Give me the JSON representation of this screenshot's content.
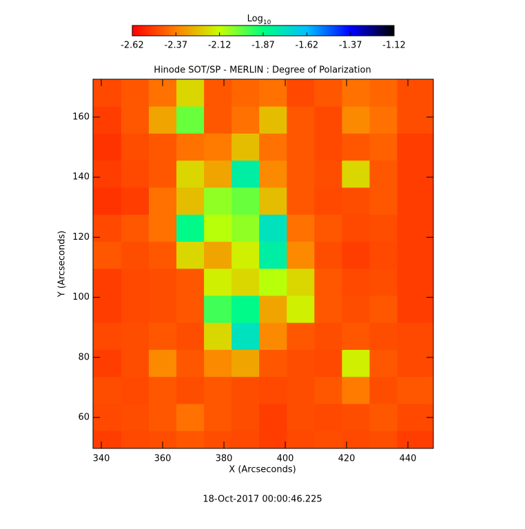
{
  "chart_data": {
    "type": "heatmap",
    "title": "Hinode SOT/SP - MERLIN : Degree of Polarization",
    "xlabel": "X (Arcseconds)",
    "ylabel": "Y (Arcseconds)",
    "colorbar_label": "Log",
    "colorbar_label_sub": "10",
    "footer": "18-Oct-2017 00:00:46.225",
    "xlim": [
      337.3,
      448.3
    ],
    "xticks": [
      340,
      360,
      380,
      400,
      420,
      440
    ],
    "ylim": [
      49.7,
      172.6
    ],
    "yticks": [
      60,
      80,
      100,
      120,
      140,
      160
    ],
    "clim": [
      -2.62,
      -1.12
    ],
    "cticks": [
      -2.62,
      -2.37,
      -2.12,
      -1.87,
      -1.62,
      -1.37,
      -1.12
    ],
    "colormap": [
      "#ff0000",
      "#ff8000",
      "#c8ff00",
      "#00ff80",
      "#00c0ff",
      "#0000ff",
      "#000000"
    ],
    "x": [
      342,
      351,
      360,
      369,
      378,
      387,
      396,
      405,
      414,
      423,
      432,
      441
    ],
    "y": [
      168,
      159,
      150,
      141,
      132,
      123,
      114,
      105,
      96,
      87,
      78,
      69,
      60,
      51
    ],
    "z": [
      [
        -2.48,
        -2.45,
        -2.4,
        -2.2,
        -2.45,
        -2.42,
        -2.4,
        -2.48,
        -2.45,
        -2.4,
        -2.42,
        -2.47
      ],
      [
        -2.5,
        -2.45,
        -2.3,
        -2.0,
        -2.45,
        -2.4,
        -2.25,
        -2.45,
        -2.48,
        -2.35,
        -2.4,
        -2.47
      ],
      [
        -2.52,
        -2.47,
        -2.45,
        -2.4,
        -2.38,
        -2.25,
        -2.4,
        -2.45,
        -2.48,
        -2.45,
        -2.43,
        -2.5
      ],
      [
        -2.5,
        -2.48,
        -2.45,
        -2.2,
        -2.3,
        -1.8,
        -2.35,
        -2.45,
        -2.47,
        -2.2,
        -2.45,
        -2.5
      ],
      [
        -2.52,
        -2.5,
        -2.4,
        -2.25,
        -2.05,
        -2.0,
        -2.25,
        -2.45,
        -2.48,
        -2.47,
        -2.45,
        -2.5
      ],
      [
        -2.48,
        -2.45,
        -2.4,
        -1.85,
        -2.1,
        -2.05,
        -1.75,
        -2.4,
        -2.45,
        -2.48,
        -2.47,
        -2.5
      ],
      [
        -2.45,
        -2.47,
        -2.45,
        -2.2,
        -2.3,
        -2.15,
        -1.8,
        -2.35,
        -2.47,
        -2.5,
        -2.48,
        -2.5
      ],
      [
        -2.5,
        -2.48,
        -2.47,
        -2.45,
        -2.15,
        -2.2,
        -2.1,
        -2.2,
        -2.45,
        -2.48,
        -2.47,
        -2.5
      ],
      [
        -2.5,
        -2.48,
        -2.47,
        -2.45,
        -1.95,
        -1.85,
        -2.3,
        -2.15,
        -2.45,
        -2.47,
        -2.45,
        -2.5
      ],
      [
        -2.48,
        -2.47,
        -2.45,
        -2.47,
        -2.2,
        -1.75,
        -2.35,
        -2.45,
        -2.47,
        -2.45,
        -2.47,
        -2.48
      ],
      [
        -2.5,
        -2.47,
        -2.35,
        -2.45,
        -2.35,
        -2.3,
        -2.45,
        -2.47,
        -2.48,
        -2.15,
        -2.45,
        -2.48
      ],
      [
        -2.47,
        -2.48,
        -2.45,
        -2.47,
        -2.45,
        -2.47,
        -2.48,
        -2.47,
        -2.45,
        -2.38,
        -2.47,
        -2.45
      ],
      [
        -2.48,
        -2.47,
        -2.45,
        -2.4,
        -2.45,
        -2.47,
        -2.5,
        -2.47,
        -2.48,
        -2.47,
        -2.45,
        -2.48
      ],
      [
        -2.5,
        -2.48,
        -2.47,
        -2.45,
        -2.47,
        -2.48,
        -2.5,
        -2.48,
        -2.47,
        -2.48,
        -2.47,
        -2.5
      ]
    ]
  }
}
